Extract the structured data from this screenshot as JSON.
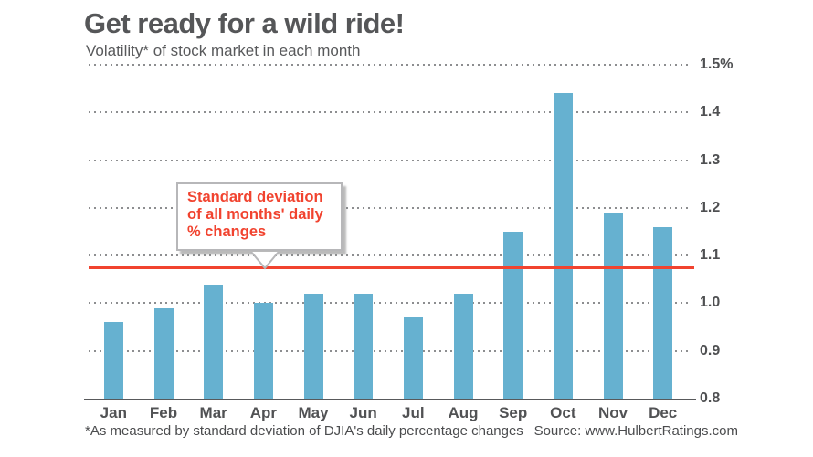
{
  "header": {
    "title": "Get ready for a wild ride!",
    "subtitle": "Volatility* of stock market in each month"
  },
  "annotation": {
    "lines": [
      "Standard deviation",
      "of all months' daily",
      "% changes"
    ]
  },
  "footer": {
    "footnote": "*As measured by standard deviation of DJIA's daily percentage changes",
    "source": "Source: www.HulbertRatings.com"
  },
  "colors": {
    "bar": "#66b1d0",
    "reference_line": "#f1432f",
    "annotation_text": "#f1432f",
    "grid": "#8d8e90",
    "axis": "#58595b",
    "text": "#555658"
  },
  "chart_data": {
    "type": "bar",
    "title": "Get ready for a wild ride!",
    "subtitle": "Volatility* of stock market in each month",
    "categories": [
      "Jan",
      "Feb",
      "Mar",
      "Apr",
      "May",
      "Jun",
      "Jul",
      "Aug",
      "Sep",
      "Oct",
      "Nov",
      "Dec"
    ],
    "values": [
      0.96,
      0.99,
      1.04,
      1.0,
      1.02,
      1.02,
      0.97,
      1.02,
      1.15,
      1.44,
      1.19,
      1.16
    ],
    "xlabel": "",
    "ylabel": "",
    "ylim": [
      0.8,
      1.5
    ],
    "yticks": {
      "values": [
        1.5,
        1.4,
        1.3,
        1.2,
        1.1,
        1.0,
        0.9,
        0.8
      ],
      "labels": [
        "1.5%",
        "1.4",
        "1.3",
        "1.2",
        "1.1",
        "1.0",
        "0.9",
        "0.8"
      ]
    },
    "grid": "horizontal-dotted",
    "legend": "none",
    "reference_line": {
      "value": 1.075,
      "label": "Standard deviation of all months' daily % changes"
    }
  }
}
